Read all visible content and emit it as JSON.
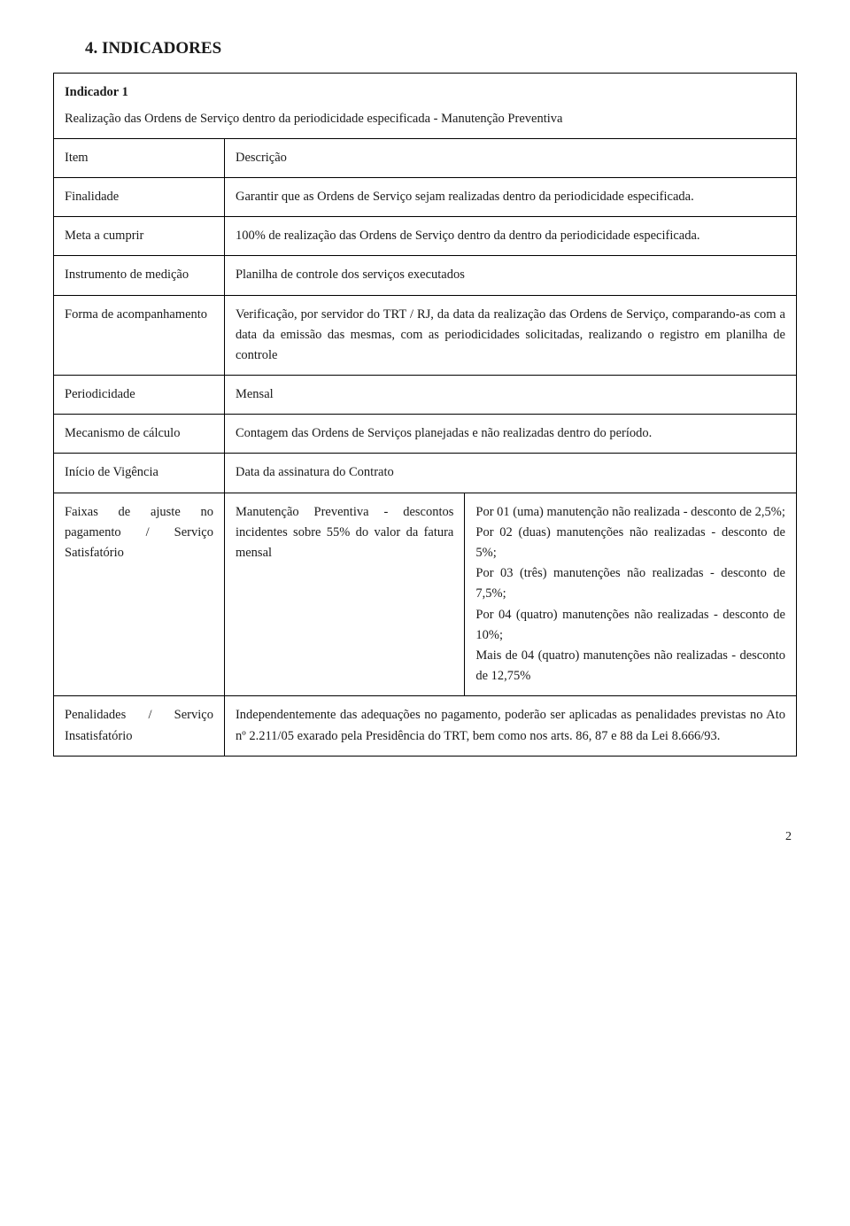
{
  "section_title": "4. INDICADORES",
  "indicator": {
    "label": "Indicador 1",
    "desc": "Realização das Ordens de Serviço dentro da periodicidade especificada - Manutenção Preventiva"
  },
  "rows": {
    "item": {
      "label": "Item",
      "value": "Descrição"
    },
    "finalidade": {
      "label": "Finalidade",
      "value": "Garantir que as Ordens de Serviço sejam realizadas dentro da periodicidade especificada."
    },
    "meta": {
      "label": "Meta a cumprir",
      "value": "100% de realização das Ordens de Serviço dentro da dentro da periodicidade especificada."
    },
    "instrumento": {
      "label": "Instrumento de medição",
      "value": "Planilha de controle dos serviços executados"
    },
    "forma": {
      "label": "Forma de acompanhamento",
      "value": "Verificação, por servidor do TRT / RJ, da data da realização das Ordens de Serviço, comparando-as com a data da emissão das mesmas, com as periodicidades solicitadas, realizando o registro em planilha de controle"
    },
    "periodicidade": {
      "label": "Periodicidade",
      "value": "Mensal"
    },
    "mecanismo": {
      "label": "Mecanismo de cálculo",
      "value": "Contagem das Ordens de Serviços planejadas e não realizadas dentro do período."
    },
    "inicio": {
      "label": "Início de Vigência",
      "value": "Data da assinatura do Contrato"
    },
    "faixas": {
      "label": "Faixas de ajuste no pagamento / Serviço Satisfatório",
      "col1": "Manutenção Preventiva - descontos incidentes sobre 55% do valor da fatura mensal",
      "col2": "Por 01 (uma) manutenção não realizada - desconto de 2,5%;\nPor 02 (duas) manutenções não realizadas - desconto de 5%;\nPor 03 (três) manutenções não realizadas - desconto de 7,5%;\nPor 04 (quatro) manutenções não realizadas - desconto de 10%;\nMais de 04 (quatro) manutenções não realizadas - desconto de 12,75%"
    },
    "penalidades": {
      "label": "Penalidades / Serviço Insatisfatório",
      "value": "Independentemente das adequações no pagamento, poderão ser aplicadas as penalidades previstas no Ato nº 2.211/05 exarado pela Presidência do TRT, bem como nos arts. 86, 87 e 88 da Lei 8.666/93."
    }
  },
  "page_number": "2"
}
